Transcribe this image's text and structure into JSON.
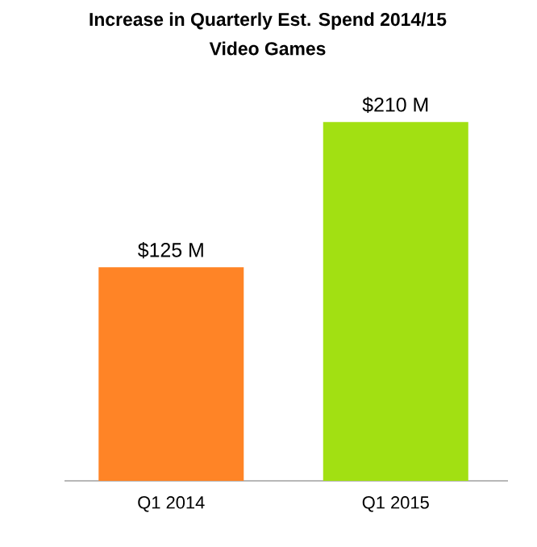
{
  "chart_data": {
    "type": "bar",
    "title": "Increase in Quarterly Est. Spend 2014/15",
    "subtitle": "Video Games",
    "categories": [
      "Q1 2014",
      "Q1 2015"
    ],
    "values": [
      125,
      210
    ],
    "colors": [
      "#ff8426",
      "#a2e012"
    ],
    "value_labels": [
      "$125 M",
      "$210 M"
    ]
  }
}
